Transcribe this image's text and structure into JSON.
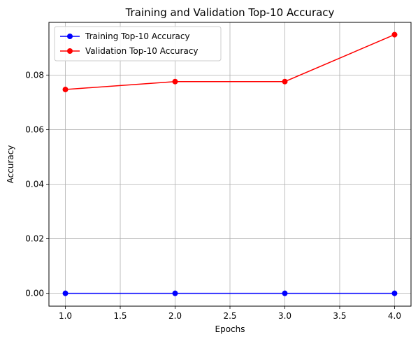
{
  "chart_data": {
    "type": "line",
    "title": "Training and Validation Top-10 Accuracy",
    "xlabel": "Epochs",
    "ylabel": "Accuracy",
    "xlim": [
      0.85,
      4.15
    ],
    "ylim": [
      -0.0047,
      0.0993
    ],
    "xticks": [
      1.0,
      1.5,
      2.0,
      2.5,
      3.0,
      3.5,
      4.0
    ],
    "xtick_labels": [
      "1.0",
      "1.5",
      "2.0",
      "2.5",
      "3.0",
      "3.5",
      "4.0"
    ],
    "yticks": [
      0.0,
      0.02,
      0.04,
      0.06,
      0.08
    ],
    "ytick_labels": [
      "0.00",
      "0.02",
      "0.04",
      "0.06",
      "0.08"
    ],
    "grid": true,
    "legend_position": "upper-left",
    "x": [
      1,
      2,
      3,
      4
    ],
    "series": [
      {
        "name": "Training Top-10 Accuracy",
        "color": "#0000ff",
        "marker": "circle",
        "values": [
          0.0,
          0.0,
          0.0,
          0.0
        ]
      },
      {
        "name": "Validation Top-10 Accuracy",
        "color": "#ff0000",
        "marker": "circle",
        "values": [
          0.0747,
          0.0776,
          0.0776,
          0.0948
        ]
      }
    ]
  }
}
